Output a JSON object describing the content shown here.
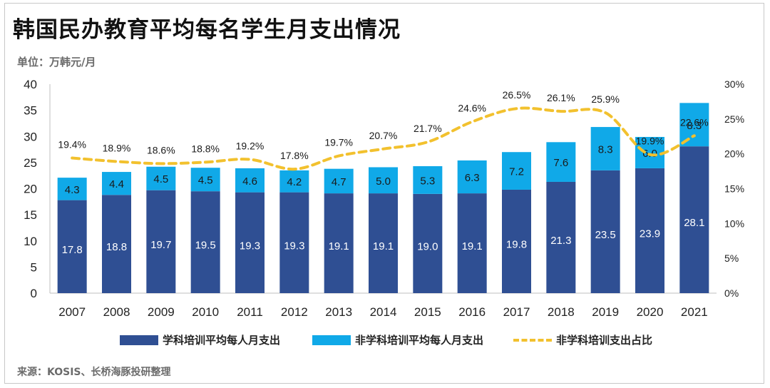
{
  "title": "韩国民办教育平均每名学生月支出情况",
  "unit": "单位：万韩元/月",
  "source": "来源：KOSIS、长桥海豚投研整理",
  "colors": {
    "subject": "#2f4f93",
    "non_subject": "#10a9e8",
    "ratio": "#f2c12e"
  },
  "chart_data": {
    "type": "bar",
    "stacked": true,
    "categories": [
      "2007",
      "2008",
      "2009",
      "2010",
      "2011",
      "2012",
      "2013",
      "2014",
      "2015",
      "2016",
      "2017",
      "2018",
      "2019",
      "2020",
      "2021"
    ],
    "series": [
      {
        "name": "学科培训平均每人月支出",
        "type": "bar",
        "axis": "left",
        "values": [
          17.8,
          18.8,
          19.7,
          19.5,
          19.3,
          19.3,
          19.1,
          19.1,
          19.0,
          19.1,
          19.8,
          21.3,
          23.5,
          23.9,
          28.1
        ],
        "labels": [
          "17.8",
          "18.8",
          "19.7",
          "19.5",
          "19.3",
          "19.3",
          "19.1",
          "19.1",
          "19.0",
          "19.1",
          "19.8",
          "21.3",
          "23.5",
          "23.9",
          "28.1"
        ]
      },
      {
        "name": "非学科培训平均每人月支出",
        "type": "bar",
        "axis": "left",
        "values": [
          4.3,
          4.4,
          4.5,
          4.5,
          4.6,
          4.2,
          4.7,
          5.0,
          5.3,
          6.3,
          7.2,
          7.6,
          8.3,
          6.0,
          8.3
        ],
        "labels": [
          "4.3",
          "4.4",
          "4.5",
          "4.5",
          "4.6",
          "4.2",
          "4.7",
          "5.0",
          "5.3",
          "6.3",
          "7.2",
          "7.6",
          "8.3",
          "6.0",
          "8.3"
        ]
      },
      {
        "name": "非学科培训支出占比",
        "type": "line",
        "style": "dashed",
        "axis": "right",
        "values": [
          19.4,
          18.9,
          18.6,
          18.8,
          19.2,
          17.8,
          19.7,
          20.7,
          21.7,
          24.6,
          26.5,
          26.1,
          25.9,
          19.9,
          22.6
        ],
        "labels": [
          "19.4%",
          "18.9%",
          "18.6%",
          "18.8%",
          "19.2%",
          "17.8%",
          "19.7%",
          "20.7%",
          "21.7%",
          "24.6%",
          "26.5%",
          "26.1%",
          "25.9%",
          "19.9%",
          "22.6%"
        ]
      }
    ],
    "y_left": {
      "min": 0,
      "max": 40,
      "ticks": [
        "0",
        "5",
        "10",
        "15",
        "20",
        "25",
        "30",
        "35",
        "40"
      ]
    },
    "y_right": {
      "min": 0,
      "max": 30,
      "ticks": [
        "0%",
        "5%",
        "10%",
        "15%",
        "20%",
        "25%",
        "30%"
      ]
    },
    "grid": false,
    "legend": "bottom"
  }
}
